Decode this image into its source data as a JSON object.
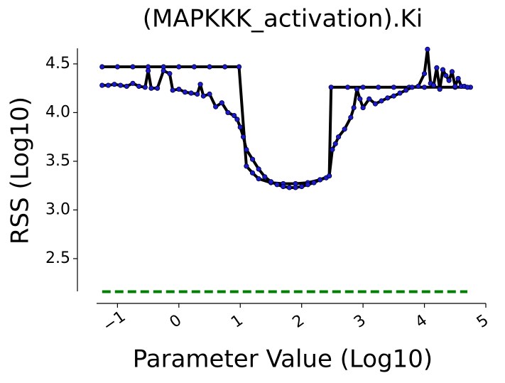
{
  "chart_data": {
    "type": "line",
    "title": "(MAPKKK_activation).Ki",
    "x_label": "Parameter Value (Log10)",
    "y_label": "RSS (Log10)",
    "xlim": [
      -1.34,
      5
    ],
    "ylim": [
      2.04,
      4.66
    ],
    "xticks": [
      {
        "value": -1,
        "label": "−1"
      },
      0,
      1,
      2,
      3,
      4,
      5
    ],
    "yticks": [
      2.5,
      {
        "value": 3.0,
        "label": "3.0"
      },
      3.5,
      {
        "value": 4.0,
        "label": "4.0"
      },
      4.5
    ],
    "series": [
      {
        "color": "#000000",
        "marker_color": "#1a1acc",
        "markers": true,
        "linestyle": "solid",
        "x": [
          -1.25,
          -1.0,
          -0.75,
          -0.5,
          -0.25,
          0,
          0.25,
          0.5,
          0.75,
          0.98,
          1.1,
          1.2,
          1.3,
          1.5,
          1.7,
          1.9,
          2.1,
          2.3,
          2.45,
          2.48,
          2.75,
          3.0,
          3.25,
          3.5,
          3.75,
          4.0,
          4.25,
          4.5,
          4.75
        ],
        "values": [
          4.47,
          4.47,
          4.47,
          4.47,
          4.47,
          4.47,
          4.47,
          4.47,
          4.47,
          4.47,
          3.45,
          3.38,
          3.32,
          3.28,
          3.27,
          3.27,
          3.28,
          3.31,
          3.35,
          4.26,
          4.26,
          4.26,
          4.26,
          4.26,
          4.26,
          4.26,
          4.26,
          4.26,
          4.26
        ]
      },
      {
        "color": "#000000",
        "marker_color": "#1a1acc",
        "markers": true,
        "linestyle": "solid",
        "x": [
          -1.25,
          -1.15,
          -1.05,
          -0.95,
          -0.85,
          -0.75,
          -0.65,
          -0.55,
          -0.5,
          -0.45,
          -0.35,
          -0.25,
          -0.15,
          -0.1,
          0,
          0.1,
          0.2,
          0.3,
          0.35,
          0.4,
          0.5,
          0.6,
          0.7,
          0.8,
          0.9,
          0.95,
          1.0,
          1.05,
          1.1,
          1.2,
          1.3,
          1.4,
          1.5,
          1.6,
          1.7,
          1.8,
          1.9,
          2.0,
          2.1,
          2.2,
          2.3,
          2.4,
          2.45,
          2.5,
          2.55,
          2.6,
          2.7,
          2.8,
          2.85,
          2.9,
          2.95,
          3.0,
          3.1,
          3.2,
          3.3,
          3.4,
          3.5,
          3.6,
          3.7,
          3.8,
          3.9,
          4.0,
          4.05,
          4.1,
          4.15,
          4.2,
          4.25,
          4.3,
          4.35,
          4.4,
          4.45,
          4.5,
          4.55,
          4.6,
          4.65,
          4.7
        ],
        "values": [
          4.28,
          4.28,
          4.29,
          4.28,
          4.27,
          4.3,
          4.27,
          4.26,
          4.43,
          4.25,
          4.25,
          4.43,
          4.4,
          4.23,
          4.24,
          4.21,
          4.2,
          4.19,
          4.29,
          4.17,
          4.19,
          4.06,
          4.1,
          4.0,
          3.97,
          3.93,
          3.85,
          3.75,
          3.62,
          3.52,
          3.42,
          3.34,
          3.29,
          3.26,
          3.24,
          3.23,
          3.23,
          3.24,
          3.26,
          3.28,
          3.31,
          3.33,
          3.35,
          3.62,
          3.68,
          3.75,
          3.83,
          3.95,
          4.05,
          4.24,
          4.14,
          4.05,
          4.14,
          4.09,
          4.12,
          4.15,
          4.17,
          4.2,
          4.23,
          4.26,
          4.27,
          4.4,
          4.65,
          4.3,
          4.28,
          4.46,
          4.24,
          4.44,
          4.38,
          4.33,
          4.42,
          4.27,
          4.35,
          4.27,
          4.27,
          4.26
        ]
      },
      {
        "color": "#008000",
        "markers": false,
        "linestyle": "dashed",
        "x": [
          -1.25,
          4.7
        ],
        "values": [
          2.16,
          2.16
        ]
      }
    ]
  }
}
